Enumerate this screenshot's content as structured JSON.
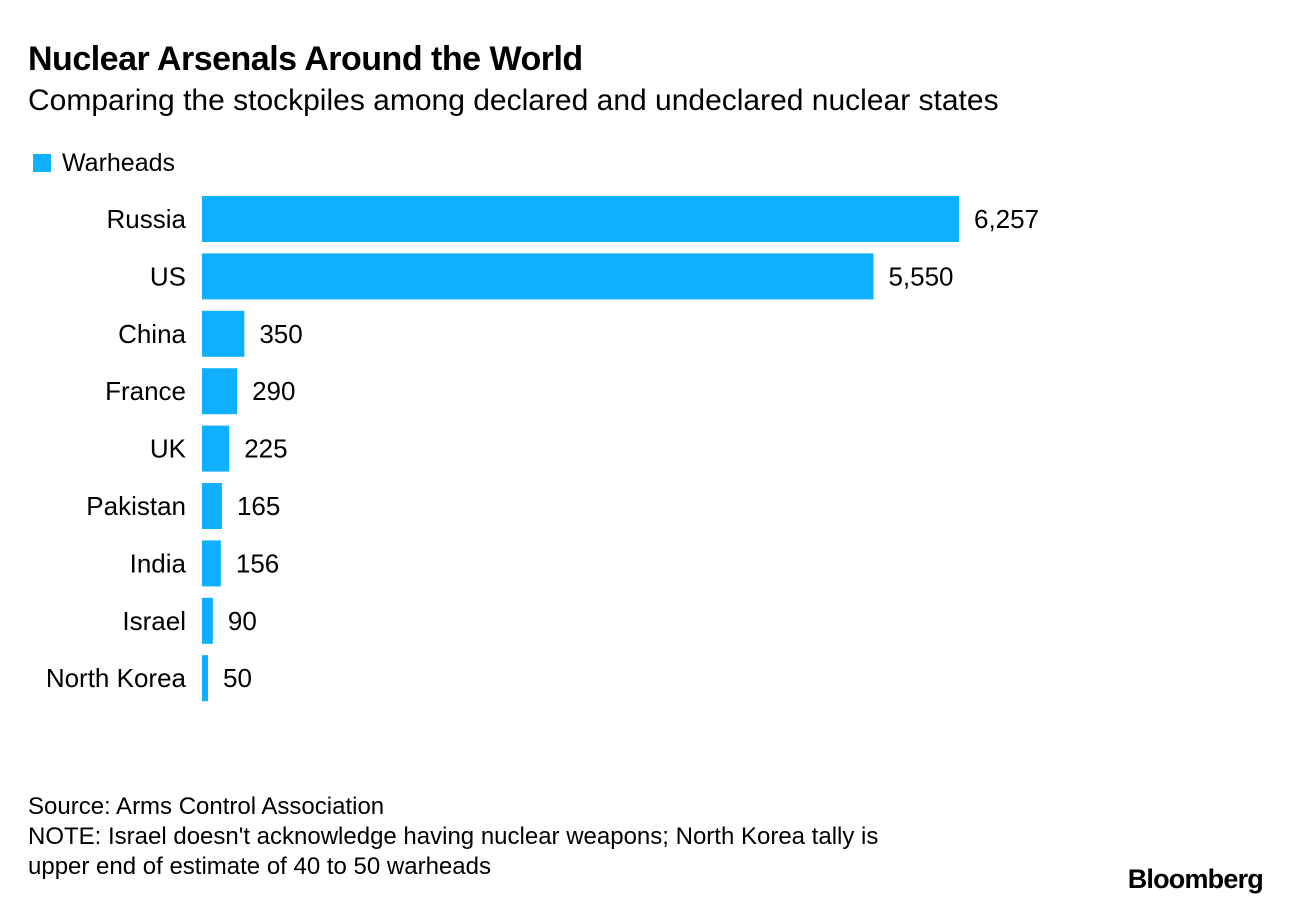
{
  "header": {
    "title": "Nuclear Arsenals Around the World",
    "subtitle": "Comparing the stockpiles among declared and undeclared nuclear states"
  },
  "legend": {
    "label": "Warheads",
    "color": "#0fb0ff"
  },
  "chart_data": {
    "type": "bar",
    "orientation": "horizontal",
    "title": "Nuclear Arsenals Around the World",
    "subtitle": "Comparing the stockpiles among declared and undeclared nuclear states",
    "categories": [
      "Russia",
      "US",
      "China",
      "France",
      "UK",
      "Pakistan",
      "India",
      "Israel",
      "North Korea"
    ],
    "series": [
      {
        "name": "Warheads",
        "values": [
          6257,
          5550,
          350,
          290,
          225,
          165,
          156,
          90,
          50
        ],
        "labels": [
          "6,257",
          "5,550",
          "350",
          "290",
          "225",
          "165",
          "156",
          "90",
          "50"
        ],
        "color": "#0fb0ff"
      }
    ],
    "xlabel": "",
    "ylabel": "",
    "grid": false,
    "legend_position": "top-left"
  },
  "footer": {
    "source": "Source: Arms Control Association",
    "note_line1": "NOTE: Israel doesn't acknowledge having nuclear weapons; North Korea tally is",
    "note_line2": "upper end of estimate of 40 to 50 warheads"
  },
  "brand": "Bloomberg"
}
